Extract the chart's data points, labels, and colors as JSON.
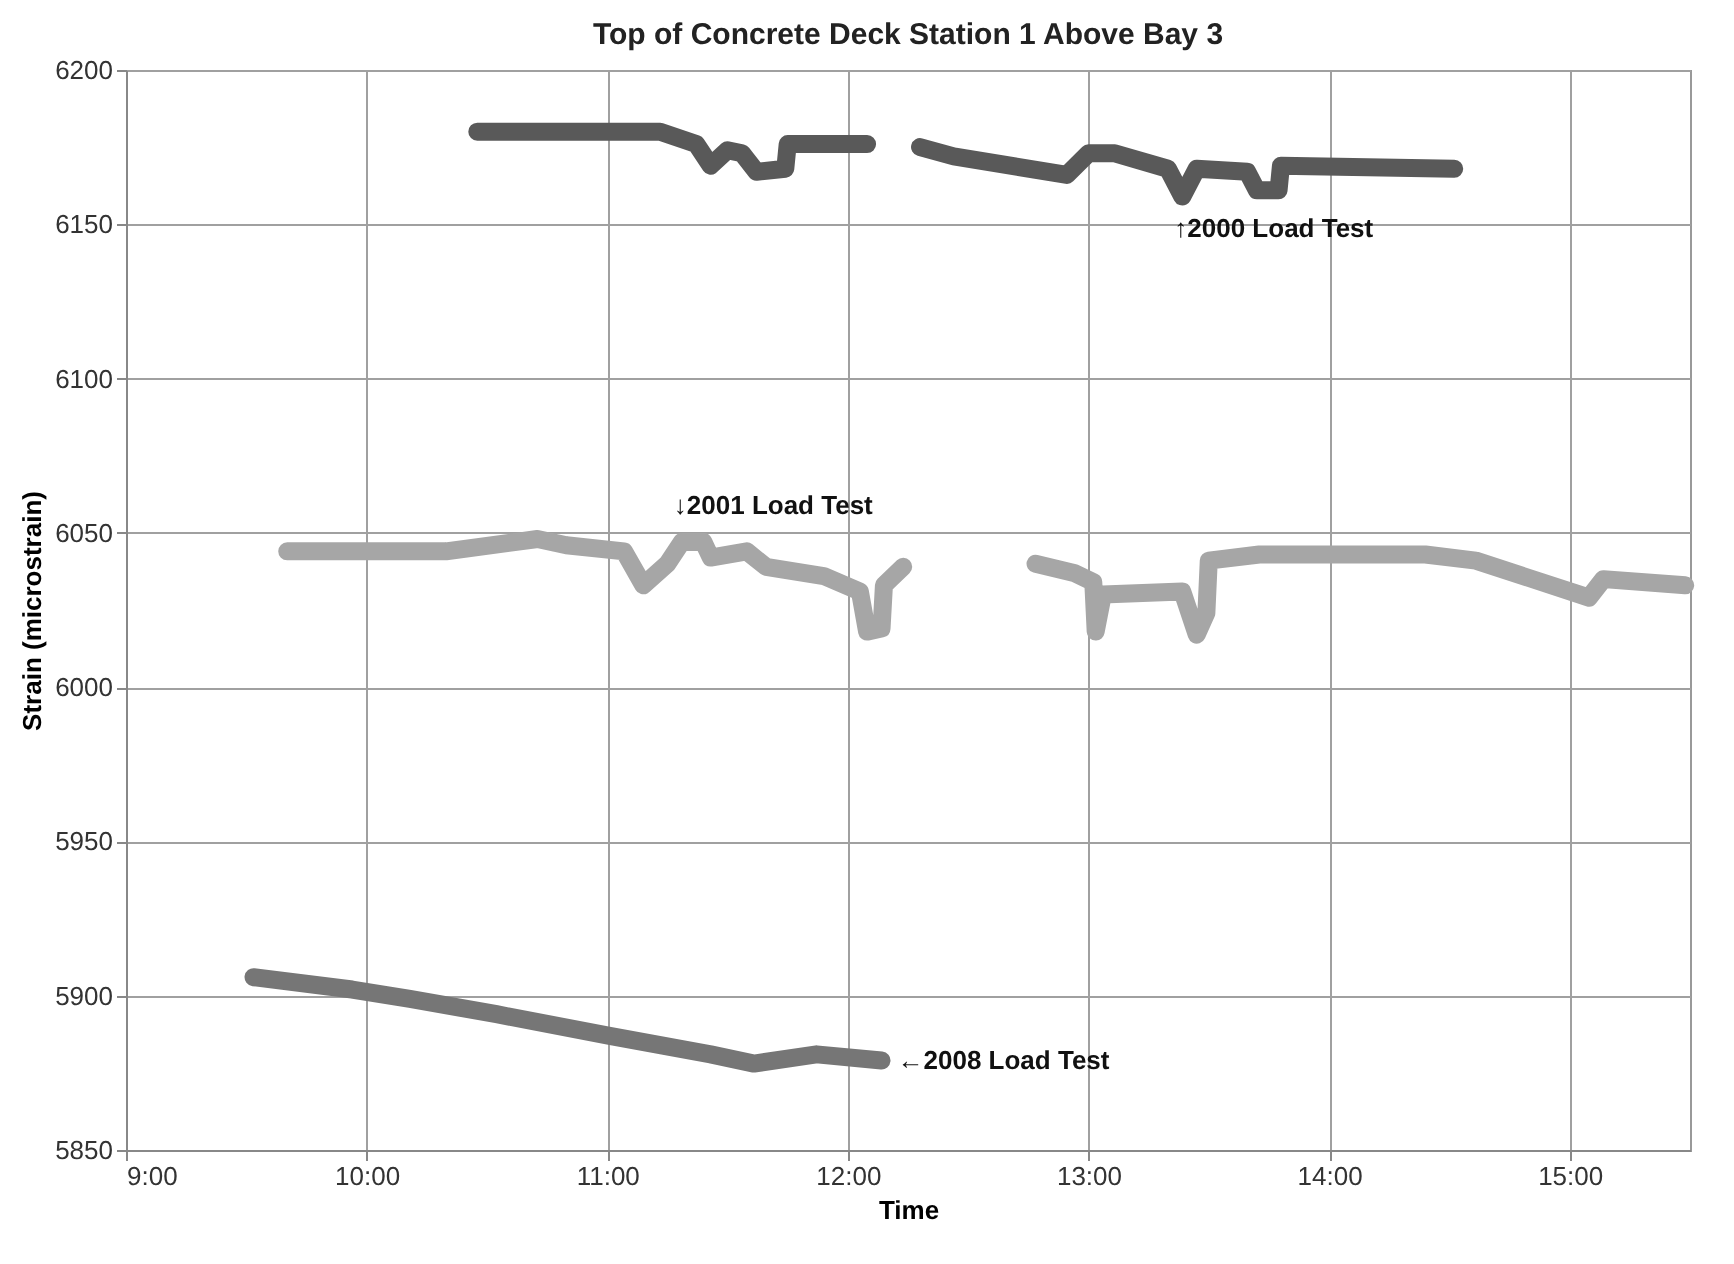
{
  "chart_data": {
    "type": "line",
    "title": "Top of Concrete Deck Station 1 Above Bay 3",
    "xlabel": "Time",
    "ylabel": "Strain (microstrain)",
    "xlim": [
      9,
      15.5
    ],
    "xticks": [
      {
        "value": 9,
        "label": "9:00"
      },
      {
        "value": 10,
        "label": "10:00"
      },
      {
        "value": 11,
        "label": "11:00"
      },
      {
        "value": 12,
        "label": "12:00"
      },
      {
        "value": 13,
        "label": "13:00"
      },
      {
        "value": 14,
        "label": "14:00"
      },
      {
        "value": 15,
        "label": "15:00"
      }
    ],
    "ylim": [
      5850,
      6200
    ],
    "yticks": [
      5850,
      5900,
      5950,
      6000,
      6050,
      6100,
      6150,
      6200
    ],
    "grid": true,
    "line_style": "solid",
    "series": [
      {
        "color": "#595959",
        "x": [
          10.46,
          11.22,
          11.37,
          11.43,
          11.5,
          11.56,
          11.62,
          11.74,
          11.75,
          12.08,
          12.2,
          12.3,
          12.44,
          12.91,
          13.0,
          13.11,
          13.33,
          13.39,
          13.45,
          13.66,
          13.7,
          13.79,
          13.8,
          14.52
        ],
        "values": [
          6180,
          6180,
          6176,
          6169,
          6174,
          6173,
          6167,
          6168,
          6176,
          6176,
          null,
          6175,
          6172,
          6166,
          6173,
          6173,
          6168,
          6159,
          6168,
          6167,
          6161,
          6161,
          6169,
          6168
        ]
      },
      {
        "color": "#a6a6a6",
        "x": [
          9.67,
          10.33,
          10.71,
          10.83,
          11.07,
          11.15,
          11.25,
          11.31,
          11.4,
          11.43,
          11.58,
          11.66,
          11.9,
          12.05,
          12.08,
          12.14,
          12.15,
          12.23,
          12.5,
          12.78,
          12.94,
          13.02,
          13.03,
          13.06,
          13.39,
          13.45,
          13.49,
          13.5,
          13.71,
          14.4,
          14.61,
          15.08,
          15.14,
          15.48
        ],
        "values": [
          6044,
          6044,
          6048,
          6046,
          6044,
          6033,
          6040,
          6047,
          6047,
          6042,
          6044,
          6039,
          6036,
          6031,
          6018,
          6019,
          6033,
          6039,
          null,
          6040,
          6037,
          6034,
          6018,
          6030,
          6031,
          6017,
          6024,
          6041,
          6043,
          6043,
          6041,
          6029,
          6035,
          6033
        ]
      },
      {
        "color": "#767676",
        "x": [
          9.53,
          9.94,
          10.18,
          10.54,
          11.01,
          11.43,
          11.61,
          11.87,
          12.14
        ],
        "values": [
          5906,
          5902,
          5899,
          5894,
          5887,
          5881,
          5878,
          5881,
          5879
        ]
      }
    ],
    "annotations": [
      {
        "text": "↑2000 Load Test",
        "x": 13.39,
        "y": 6159
      },
      {
        "text": "↓2001 Load Test",
        "x": 11.31,
        "y": 6047
      },
      {
        "text": "←2008 Load Test",
        "x": 12.14,
        "y": 5879
      }
    ]
  }
}
